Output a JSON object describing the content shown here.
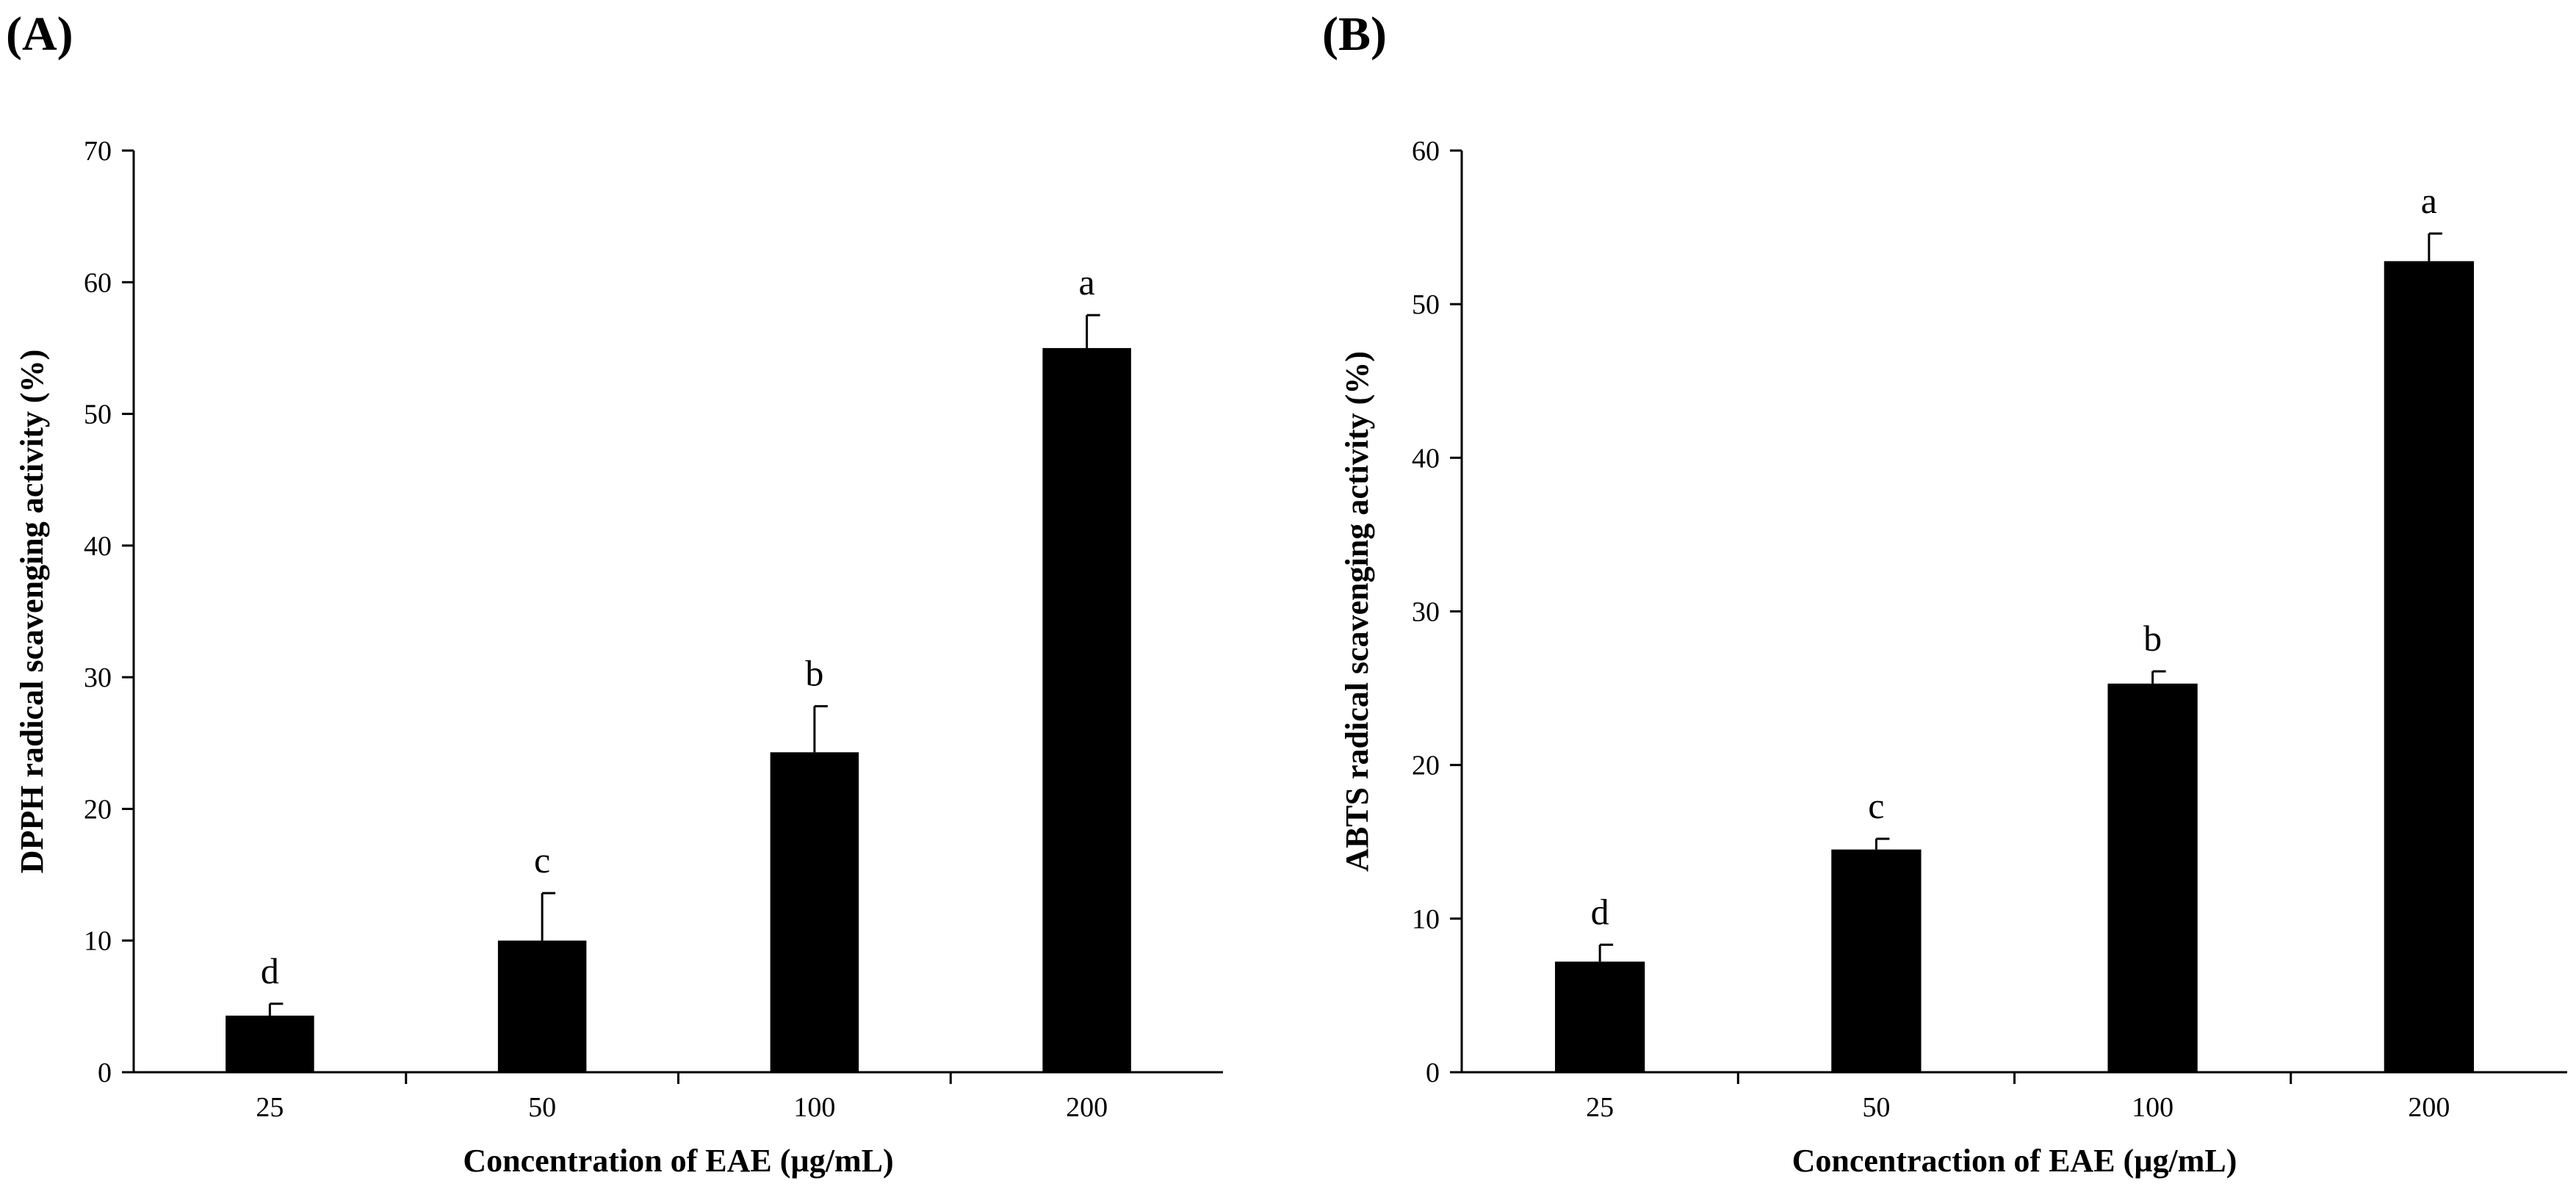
{
  "chart_data": [
    {
      "panel": "(A)",
      "type": "bar",
      "categories": [
        "25",
        "50",
        "100",
        "200"
      ],
      "values": [
        4.3,
        10.0,
        24.3,
        55.0
      ],
      "errors": [
        0.9,
        3.6,
        3.5,
        2.5
      ],
      "significance": [
        "d",
        "c",
        "b",
        "a"
      ],
      "xlabel": "Concentration  of  EAE (µg/mL)",
      "ylabel": "DPPH radical scavenging activity (%)",
      "ylim": [
        0,
        70
      ],
      "yticks": [
        "0",
        "10",
        "20",
        "30",
        "40",
        "50",
        "60",
        "70"
      ],
      "bar_color": "#000000",
      "grid": false
    },
    {
      "panel": "(B)",
      "type": "bar",
      "categories": [
        "25",
        "50",
        "100",
        "200"
      ],
      "values": [
        7.2,
        14.5,
        25.3,
        52.8
      ],
      "errors": [
        1.1,
        0.7,
        0.8,
        1.8
      ],
      "significance": [
        "d",
        "c",
        "b",
        "a"
      ],
      "xlabel": "Concentraction  of  EAE (µg/mL)",
      "ylabel": "ABTS radical scavenging activity (%)",
      "ylim": [
        0,
        60
      ],
      "yticks": [
        "0",
        "10",
        "20",
        "30",
        "40",
        "50",
        "60"
      ],
      "bar_color": "#000000",
      "grid": false
    }
  ]
}
